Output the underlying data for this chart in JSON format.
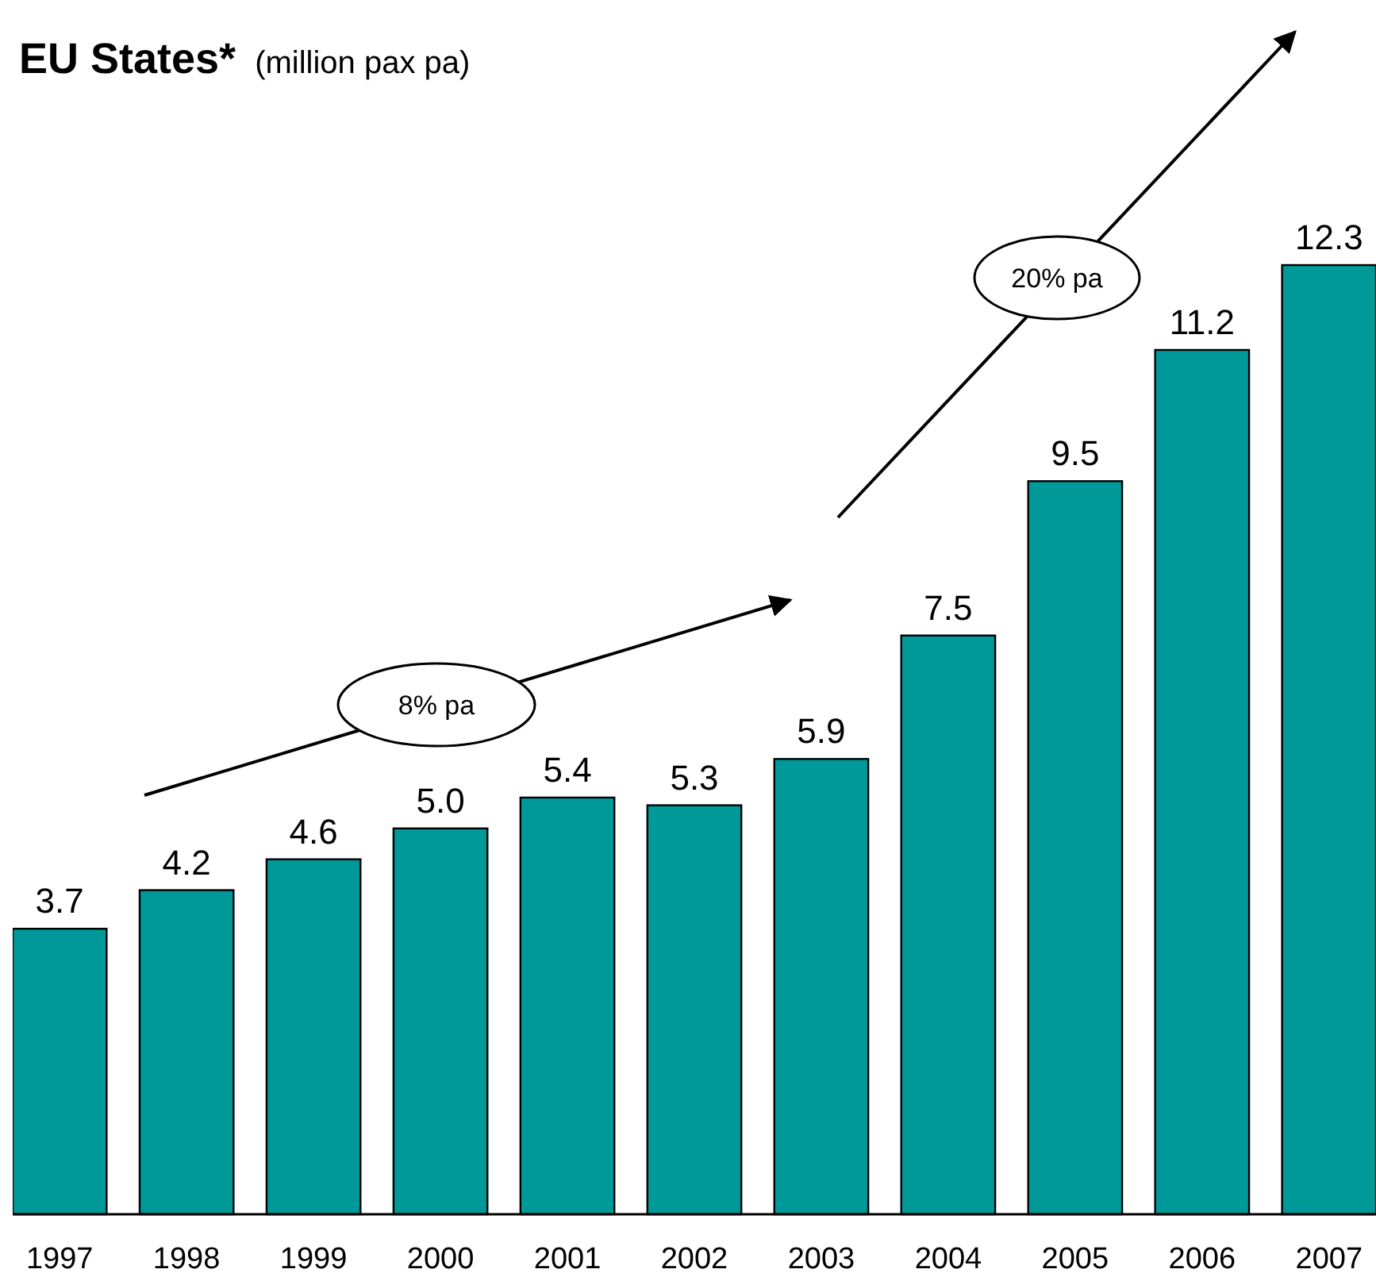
{
  "chart_data": {
    "type": "bar",
    "title": "EU States*",
    "subtitle": "(million pax pa)",
    "categories": [
      "1997",
      "1998",
      "1999",
      "2000",
      "2001",
      "2002",
      "2003",
      "2004",
      "2005",
      "2006",
      "2007"
    ],
    "values": [
      3.7,
      4.2,
      4.6,
      5.0,
      5.4,
      5.3,
      5.9,
      7.5,
      9.5,
      11.2,
      12.3
    ],
    "value_labels": [
      "3.7",
      "4.2",
      "4.6",
      "5.0",
      "5.4",
      "5.3",
      "5.9",
      "7.5",
      "9.5",
      "11.2",
      "12.3"
    ],
    "color": "#009999",
    "annotations": [
      "8% pa",
      "20% pa"
    ]
  }
}
